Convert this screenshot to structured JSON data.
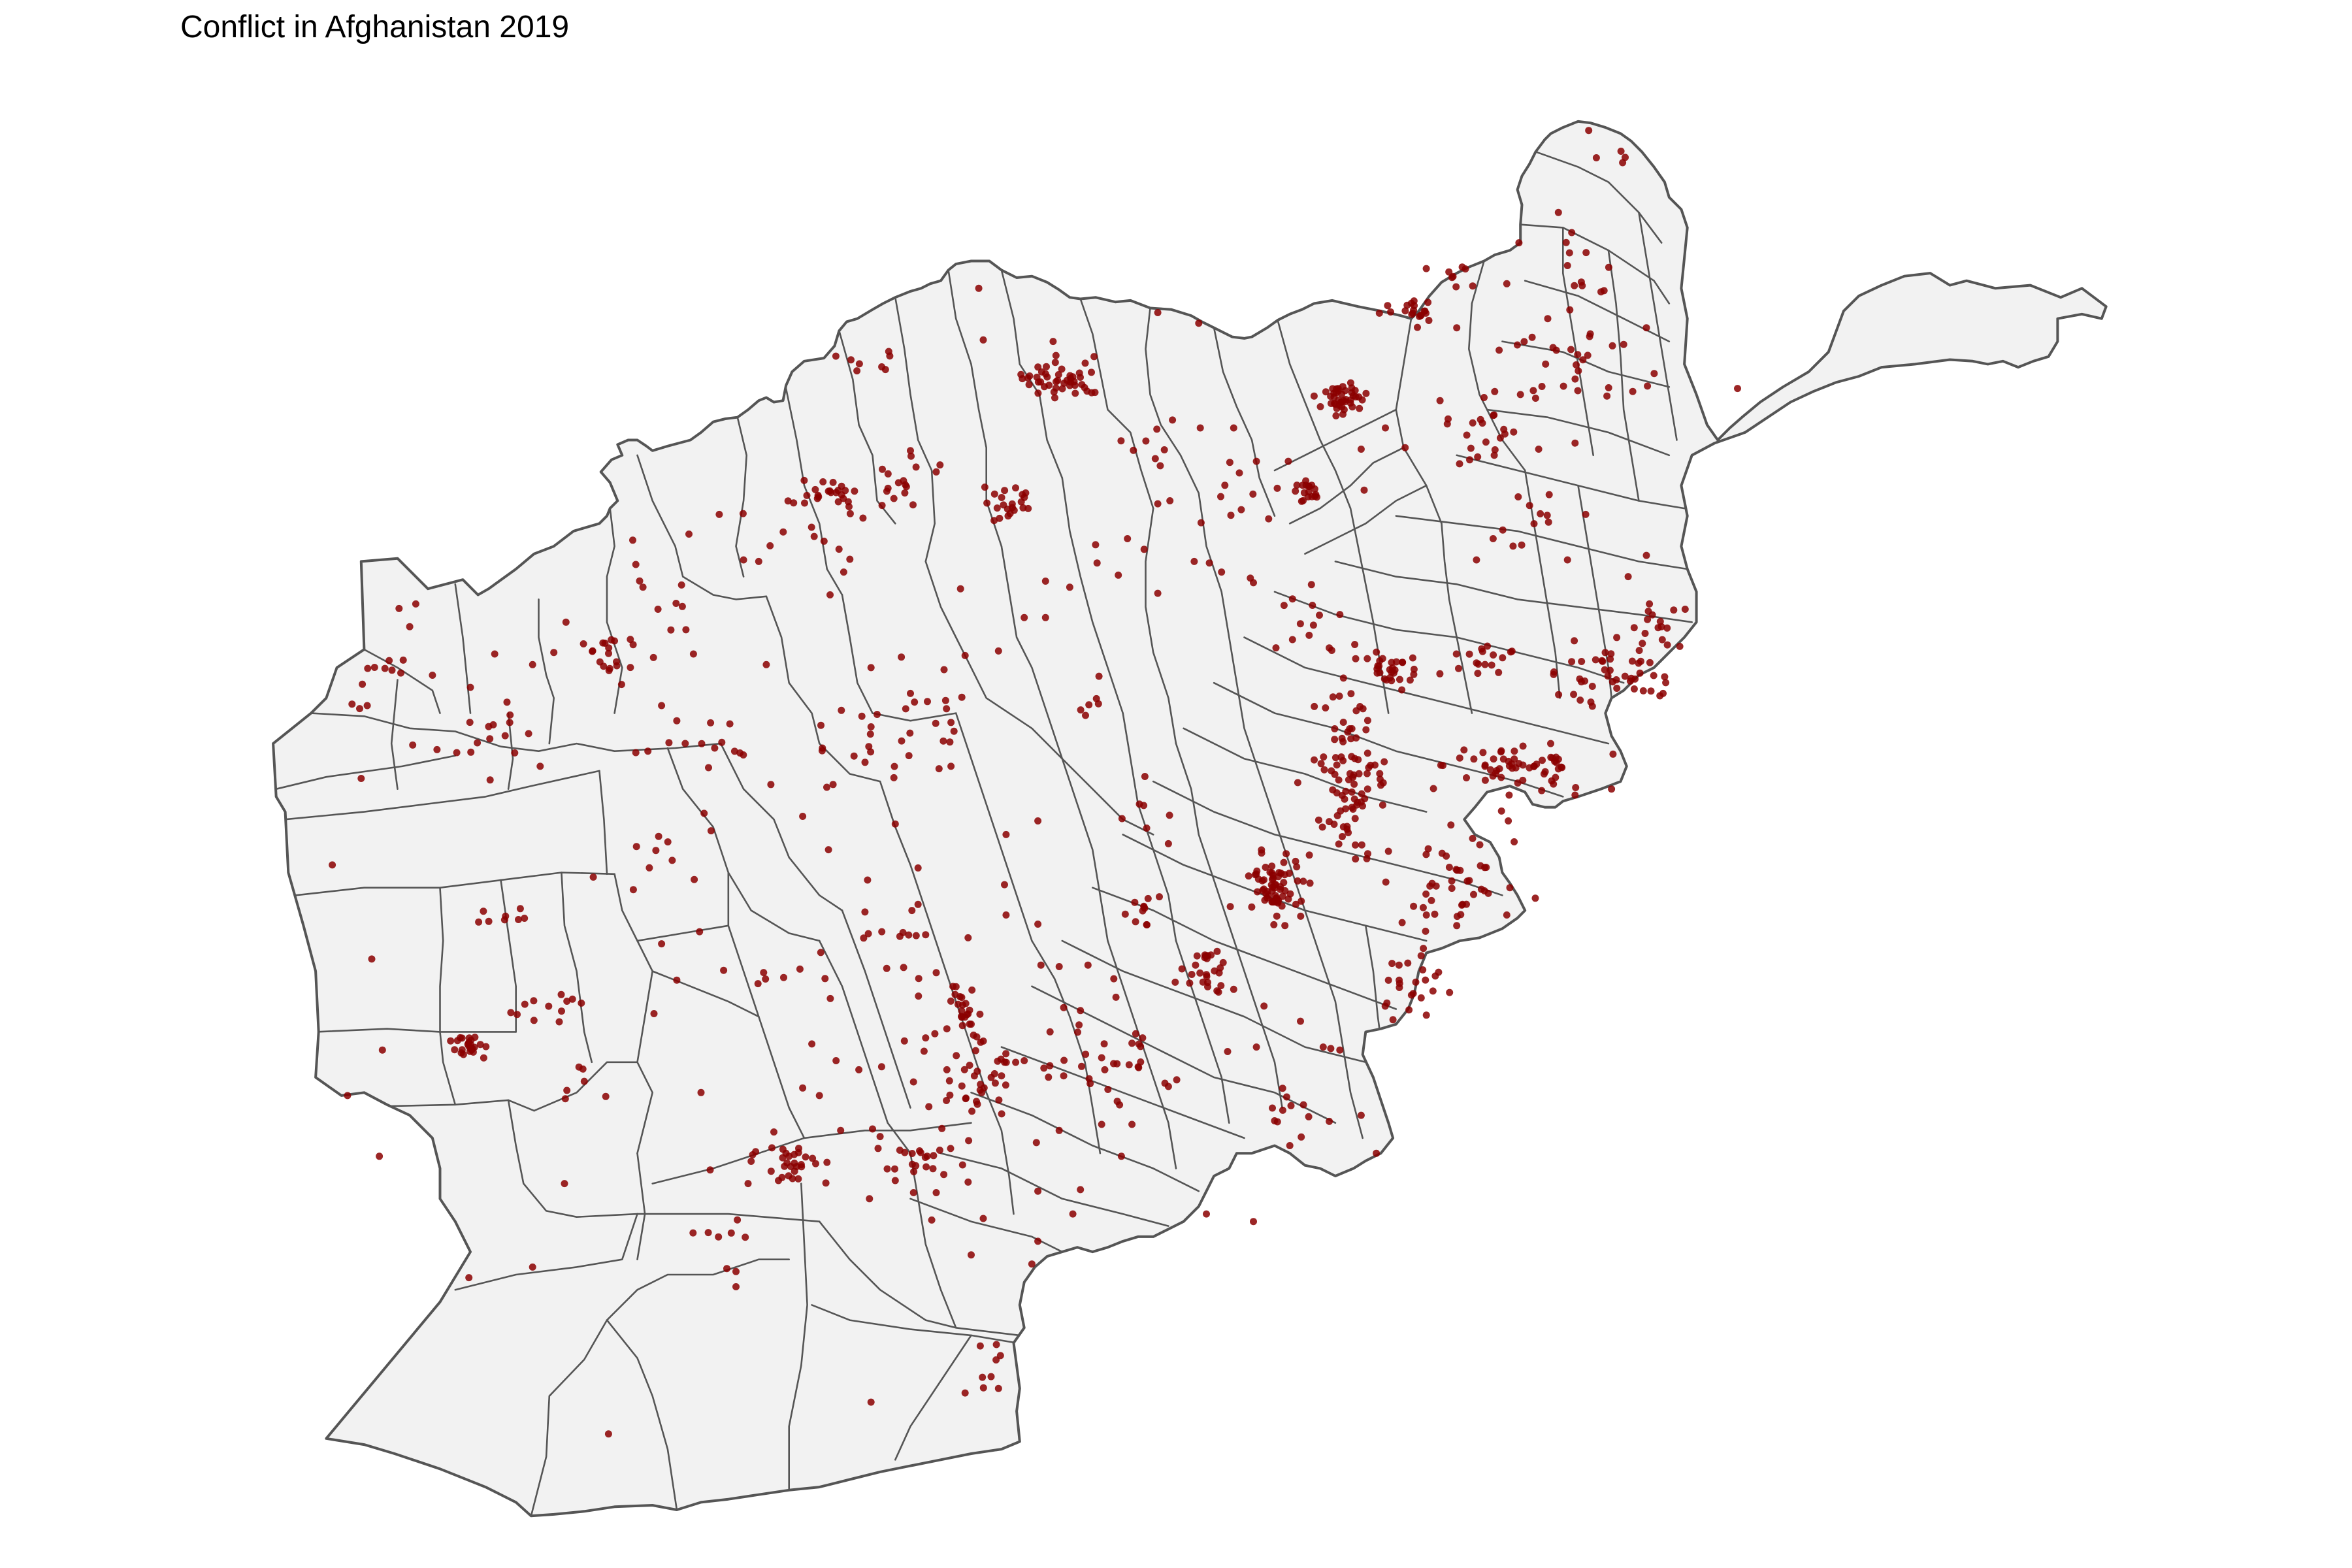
{
  "title": "Conflict in Afghanistan 2019",
  "colors": {
    "background": "#ffffff",
    "land_fill": "#f2f2f2",
    "boundary": "#555555",
    "event_point": "#8b0000"
  },
  "legend": null
}
